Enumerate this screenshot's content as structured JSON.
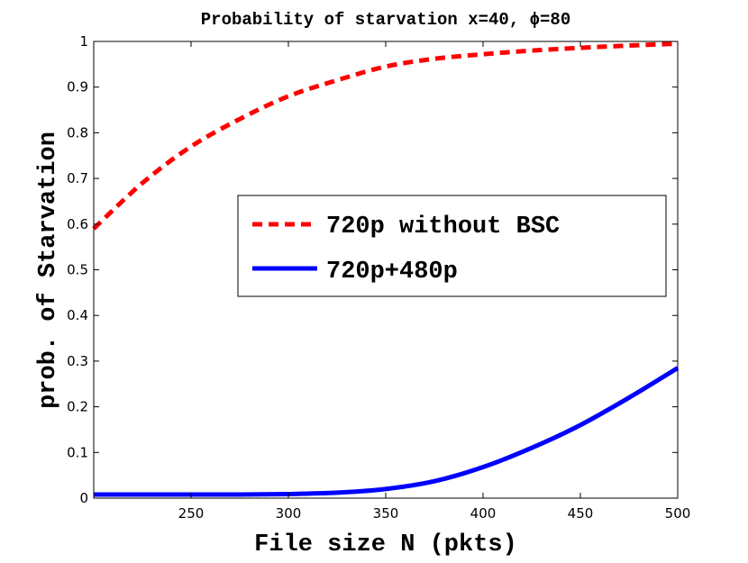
{
  "chart_data": {
    "type": "line",
    "title": "Probability of starvation x=40, ϕ=80",
    "xlabel": "File size N (pkts)",
    "ylabel": "prob. of Starvation",
    "xlim": [
      200,
      500
    ],
    "ylim": [
      0,
      1
    ],
    "xticks": [
      250,
      300,
      350,
      400,
      450,
      500
    ],
    "yticks": [
      0,
      0.1,
      0.2,
      0.3,
      0.4,
      0.5,
      0.6,
      0.7,
      0.8,
      0.9,
      1
    ],
    "ytick_labels": [
      "0",
      "0.1",
      "0.2",
      "0.3",
      "0.4",
      "0.5",
      "0.6",
      "0.7",
      "0.8",
      "0.9",
      "1"
    ],
    "grid": false,
    "legend": "center-right",
    "x": [
      200,
      225,
      250,
      275,
      300,
      325,
      350,
      375,
      400,
      425,
      450,
      475,
      500
    ],
    "series": [
      {
        "name": "720p without BSC",
        "color": "#ff0000",
        "style": "dashed",
        "values": [
          0.59,
          0.69,
          0.77,
          0.83,
          0.88,
          0.915,
          0.945,
          0.962,
          0.972,
          0.98,
          0.986,
          0.991,
          0.995
        ]
      },
      {
        "name": "720p+480p",
        "color": "#0000ff",
        "style": "solid",
        "values": [
          0.008,
          0.008,
          0.008,
          0.008,
          0.009,
          0.012,
          0.02,
          0.037,
          0.068,
          0.11,
          0.16,
          0.22,
          0.285
        ]
      }
    ]
  }
}
